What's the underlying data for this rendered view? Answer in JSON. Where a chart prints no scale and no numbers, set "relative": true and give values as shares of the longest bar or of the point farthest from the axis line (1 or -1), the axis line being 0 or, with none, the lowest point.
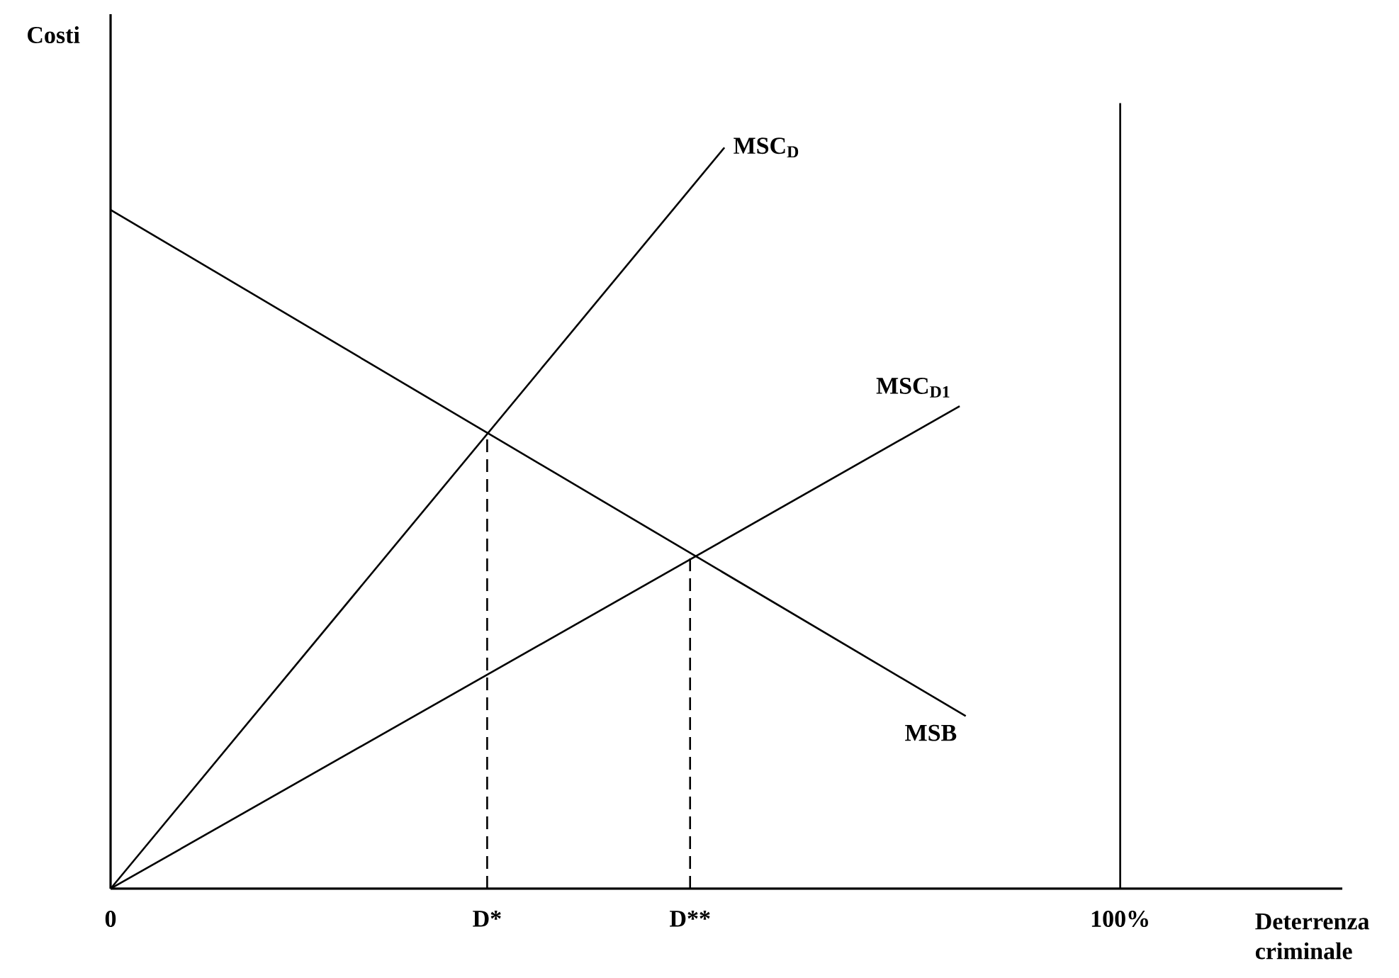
{
  "chart_data": {
    "type": "line",
    "relative": true,
    "ylabel": "Costi",
    "xlabel": "Deterrenza criminale",
    "xlim": [
      0,
      122
    ],
    "xticks": [
      {
        "value": 0,
        "label": "0"
      },
      {
        "value": 37.3,
        "label": "D*"
      },
      {
        "value": 57.4,
        "label": "D**"
      },
      {
        "value": 100,
        "label": "100%"
      }
    ],
    "grid": false,
    "legend": false,
    "marker": "none",
    "series": [
      {
        "name": "MSC$_{D}$",
        "color": "#000000",
        "x": [
          0,
          60.8
        ],
        "values": [
          0,
          1
        ]
      },
      {
        "name": "MSC$_{D1}$",
        "color": "#000000",
        "x": [
          0,
          84.1
        ],
        "values": [
          0,
          0.651
        ]
      },
      {
        "name": "MSB",
        "color": "#000000",
        "x": [
          0,
          84.7
        ],
        "values": [
          0.916,
          0.233
        ]
      },
      {
        "color": "#000000",
        "line_style": "dashed",
        "x": [
          37.3,
          37.3
        ],
        "values": [
          0,
          0.614
        ]
      },
      {
        "color": "#000000",
        "line_style": "dashed",
        "x": [
          57.4,
          57.4
        ],
        "values": [
          0,
          0.446
        ]
      }
    ],
    "ref_lines": [
      {
        "axis": "x",
        "value": 100,
        "color": "#000000"
      }
    ]
  }
}
